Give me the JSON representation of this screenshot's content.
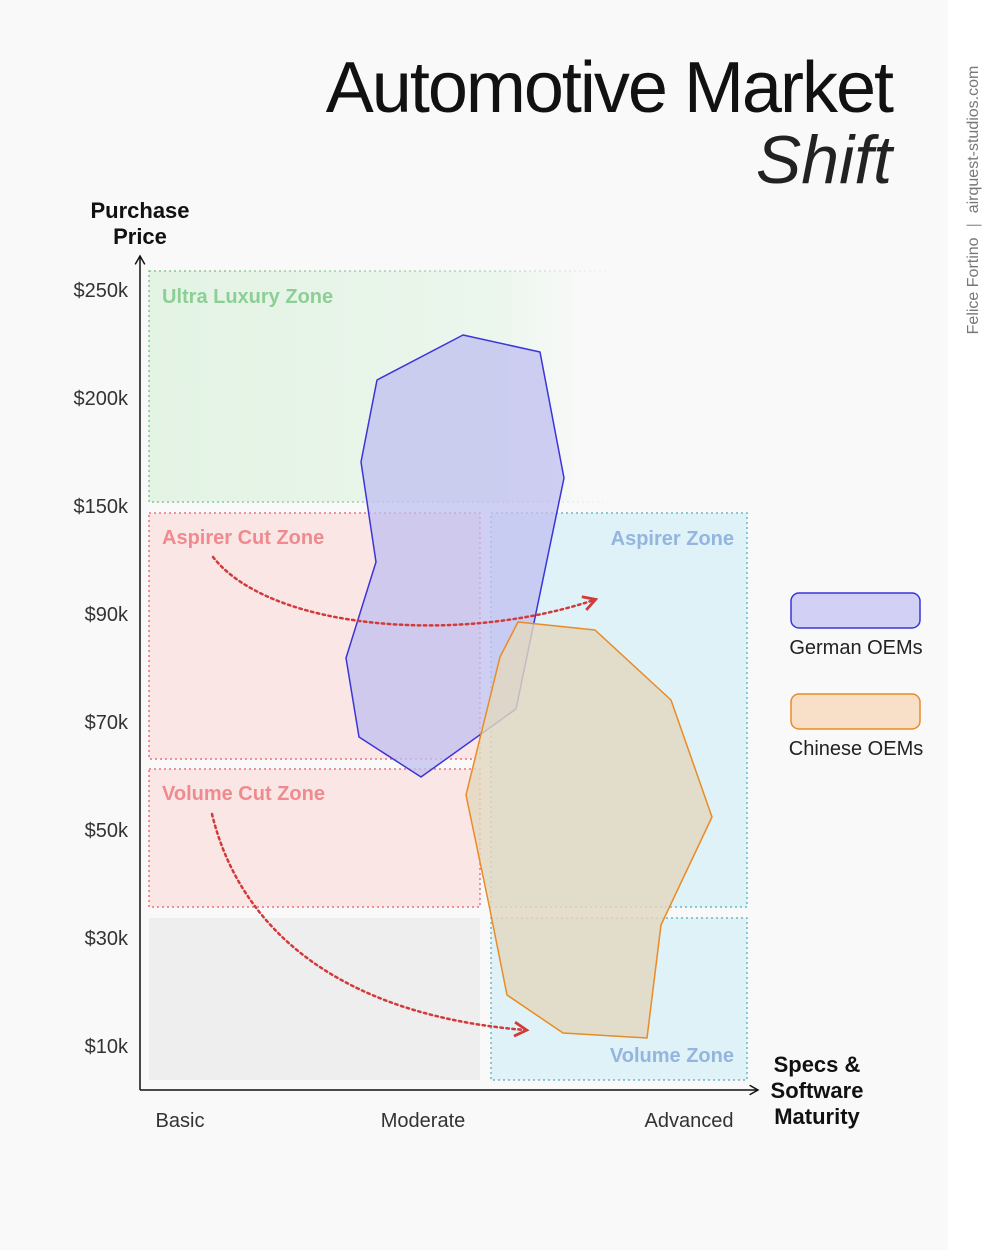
{
  "title": "Automotive Market",
  "subtitle": "Shift",
  "side_credit": {
    "author": "Felice Fortino",
    "separator": "|",
    "site": "airquest-studios.com"
  },
  "axes": {
    "y_label_line1": "Purchase",
    "y_label_line2": "Price",
    "x_label_line1": "Specs &",
    "x_label_line2": "Software",
    "x_label_line3": "Maturity",
    "y_ticks": [
      "$250k",
      "$200k",
      "$150k",
      "$90k",
      "$70k",
      "$50k",
      "$30k",
      "$10k"
    ],
    "x_ticks": [
      "Basic",
      "Moderate",
      "Advanced"
    ]
  },
  "zones": {
    "ultra_luxury": "Ultra Luxury Zone",
    "aspirer_cut": "Aspirer Cut Zone",
    "aspirer": "Aspirer Zone",
    "volume_cut": "Volume Cut Zone",
    "volume": "Volume Zone"
  },
  "legend": {
    "german": "German OEMs",
    "chinese": "Chinese OEMs"
  },
  "colors": {
    "german_stroke": "#3b35d9",
    "german_fill": "#b9b8ee",
    "chinese_stroke": "#ea8b24",
    "chinese_fill": "#f4d3b0",
    "ultra_zone": "#7fc98c",
    "cut_zone": "#e9737a",
    "aspirer_zone": "#8fb4dd",
    "arrow": "#d23a3a"
  }
}
